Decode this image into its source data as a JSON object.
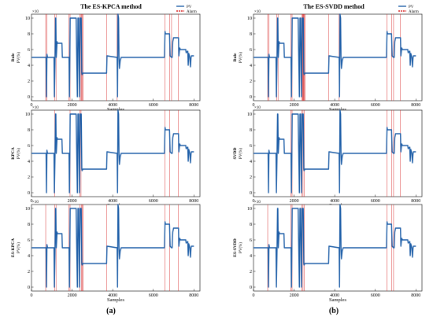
{
  "figure": {
    "left_title": "The ES-KPCA method",
    "right_title": "The ES-SVDD method",
    "left_caption": "(a)",
    "right_caption": "(b)"
  },
  "legend": {
    "pv_label": "PV",
    "alarm_label": "Alarm",
    "pv_color": "#1f5fa8",
    "alarm_color": "#d62020"
  },
  "axes": {
    "xlabel": "Samples",
    "y_unit": "PV(%)",
    "exponent": "×10",
    "xticks": [
      0,
      2000,
      4000,
      6000,
      8000
    ],
    "yticks": [
      0,
      2,
      4,
      6,
      8,
      10
    ],
    "xlim": [
      0,
      8300
    ],
    "ylim": [
      -0.5,
      10.5
    ]
  },
  "chart_data": [
    {
      "type": "line",
      "panel": "a1",
      "title": "The ES-KPCA method",
      "ylabel": "Rule",
      "xlabel": "Samples",
      "series": [
        {
          "name": "PV",
          "x": [
            0,
            720,
            740,
            760,
            790,
            805,
            1110,
            1130,
            1160,
            1185,
            1200,
            1220,
            1260,
            1280,
            1500,
            1520,
            1850,
            1870,
            1890,
            1905,
            1920,
            2200,
            2230,
            2260,
            2290,
            2320,
            2340,
            2360,
            2400,
            2450,
            2480,
            2495,
            2530,
            2580,
            3700,
            3720,
            4220,
            4240,
            4260,
            4290,
            4310,
            4330,
            4370,
            4420,
            4500,
            6550,
            6580,
            6600,
            6800,
            6830,
            6900,
            6930,
            6960,
            7000,
            7240,
            7260,
            7300,
            7340,
            7600,
            7620,
            7700,
            7720,
            7750,
            7800,
            7830,
            7860,
            7880,
            8000
          ],
          "y": [
            5,
            5,
            0,
            5.4,
            5,
            5,
            5,
            0,
            5,
            10,
            10,
            5,
            7,
            6.8,
            6.8,
            5,
            5,
            0,
            5,
            10,
            10,
            10,
            5,
            0,
            10,
            10,
            5,
            0,
            10,
            10,
            3,
            2.8,
            3,
            3,
            3,
            5.2,
            5,
            0,
            10.5,
            10,
            5.2,
            3.6,
            4.6,
            5,
            5,
            5,
            8.3,
            8,
            8,
            5.2,
            5,
            5,
            7,
            7.5,
            7.5,
            5.2,
            6.2,
            6,
            6,
            5.6,
            5.8,
            4,
            5.5,
            5,
            3.8,
            5,
            5.2,
            5.2
          ]
        }
      ],
      "alarms": [
        700,
        760,
        1150,
        1210,
        1850,
        1900,
        2380,
        2440,
        2460,
        2500,
        2540,
        3700,
        4220,
        6570,
        6800,
        6900,
        7240
      ]
    },
    {
      "type": "line",
      "panel": "b1",
      "title": "The ES-SVDD method",
      "ylabel": "Rule",
      "xlabel": "Samples",
      "series": [
        {
          "name": "PV",
          "x": [
            0,
            720,
            740,
            760,
            790,
            805,
            1110,
            1130,
            1160,
            1185,
            1200,
            1220,
            1260,
            1280,
            1500,
            1520,
            1850,
            1870,
            1890,
            1905,
            1920,
            2200,
            2230,
            2260,
            2290,
            2320,
            2340,
            2360,
            2400,
            2450,
            2480,
            2495,
            2530,
            2580,
            3700,
            3720,
            4220,
            4240,
            4260,
            4290,
            4310,
            4330,
            4370,
            4420,
            4500,
            6550,
            6580,
            6600,
            6800,
            6830,
            6900,
            6930,
            6960,
            7000,
            7240,
            7260,
            7300,
            7340,
            7600,
            7620,
            7700,
            7720,
            7750,
            7800,
            7830,
            7860,
            7880,
            8000
          ],
          "y": [
            5,
            5,
            0,
            5.4,
            5,
            5,
            5,
            0,
            5,
            10,
            10,
            5,
            7,
            6.8,
            6.8,
            5,
            5,
            0,
            5,
            10,
            10,
            10,
            5,
            0,
            10,
            10,
            5,
            0,
            10,
            10,
            3,
            2.8,
            3,
            3,
            3,
            5.2,
            5,
            0,
            10.5,
            10,
            5.2,
            3.6,
            4.6,
            5,
            5,
            5,
            8.3,
            8,
            8,
            5.2,
            5,
            5,
            7,
            7.5,
            7.5,
            5.2,
            6.2,
            6,
            6,
            5.6,
            5.8,
            4,
            5.5,
            5,
            3.8,
            5,
            5.2,
            5.2
          ]
        }
      ],
      "alarms": [
        700,
        760,
        1150,
        1210,
        1850,
        1900,
        2380,
        2420,
        2440,
        2460,
        2480,
        2500,
        2540,
        3700,
        4220,
        6570,
        6800,
        6900,
        7240
      ]
    },
    {
      "type": "line",
      "panel": "a2",
      "ylabel": "KPCA",
      "xlabel": "Samples",
      "series": [
        {
          "name": "PV",
          "x": [
            0,
            720,
            740,
            760,
            790,
            805,
            1110,
            1130,
            1160,
            1185,
            1200,
            1220,
            1260,
            1280,
            1500,
            1520,
            1850,
            1870,
            1890,
            1905,
            1920,
            2200,
            2230,
            2260,
            2290,
            2320,
            2340,
            2360,
            2400,
            2450,
            2480,
            2495,
            2530,
            2580,
            3700,
            3720,
            4220,
            4240,
            4260,
            4290,
            4310,
            4330,
            4370,
            4420,
            4500,
            6550,
            6580,
            6600,
            6800,
            6830,
            6900,
            6930,
            6960,
            7000,
            7240,
            7260,
            7300,
            7340,
            7600,
            7620,
            7700,
            7720,
            7750,
            7800,
            7830,
            7860,
            7880,
            8000
          ],
          "y": [
            5,
            5,
            0,
            5.4,
            5,
            5,
            5,
            0,
            5,
            10,
            10,
            5,
            7,
            6.8,
            6.8,
            5,
            5,
            0,
            5,
            10,
            10,
            10,
            5,
            0,
            10,
            10,
            5,
            0,
            10,
            10,
            3,
            2.8,
            3,
            3,
            3,
            5.2,
            5,
            0,
            10.5,
            10,
            5.2,
            3.6,
            4.6,
            5,
            5,
            5,
            8.3,
            8,
            8,
            5.2,
            5,
            5,
            7,
            7.5,
            7.5,
            5.2,
            6.2,
            6,
            6,
            5.6,
            5.8,
            4,
            5.5,
            5,
            3.8,
            5,
            5.2,
            5.2
          ]
        }
      ],
      "alarms": [
        1150,
        1900,
        2380,
        2440,
        6570,
        6800,
        7240
      ]
    },
    {
      "type": "line",
      "panel": "b2",
      "ylabel": "SVDD",
      "xlabel": "Samples",
      "series": [
        {
          "name": "PV",
          "x": [
            0,
            720,
            740,
            760,
            790,
            805,
            1110,
            1130,
            1160,
            1185,
            1200,
            1220,
            1260,
            1280,
            1500,
            1520,
            1850,
            1870,
            1890,
            1905,
            1920,
            2200,
            2230,
            2260,
            2290,
            2320,
            2340,
            2360,
            2400,
            2450,
            2480,
            2495,
            2530,
            2580,
            3700,
            3720,
            4220,
            4240,
            4260,
            4290,
            4310,
            4330,
            4370,
            4420,
            4500,
            6550,
            6580,
            6600,
            6800,
            6830,
            6900,
            6930,
            6960,
            7000,
            7240,
            7260,
            7300,
            7340,
            7600,
            7620,
            7700,
            7720,
            7750,
            7800,
            7830,
            7860,
            7880,
            8000
          ],
          "y": [
            5,
            5,
            0,
            5.4,
            5,
            5,
            5,
            0,
            5,
            10,
            10,
            5,
            7,
            6.8,
            6.8,
            5,
            5,
            0,
            5,
            10,
            10,
            10,
            5,
            0,
            10,
            10,
            5,
            0,
            10,
            10,
            3,
            2.8,
            3,
            3,
            3,
            5.2,
            5,
            0,
            10.5,
            10,
            5.2,
            3.6,
            4.6,
            5,
            5,
            5,
            8.3,
            8,
            8,
            5.2,
            5,
            5,
            7,
            7.5,
            7.5,
            5.2,
            6.2,
            6,
            6,
            5.6,
            5.8,
            4,
            5.5,
            5,
            3.8,
            5,
            5.2,
            5.2
          ]
        }
      ],
      "alarms": [
        1850,
        1900,
        2380,
        2440,
        2500,
        6570,
        6800,
        6900,
        7240
      ]
    },
    {
      "type": "line",
      "panel": "a3",
      "ylabel": "ES-KPCA",
      "xlabel": "Samples",
      "series": [
        {
          "name": "PV",
          "x": [
            0,
            720,
            740,
            760,
            790,
            805,
            1110,
            1130,
            1160,
            1185,
            1200,
            1220,
            1260,
            1280,
            1500,
            1520,
            1850,
            1870,
            1890,
            1905,
            1920,
            2200,
            2230,
            2260,
            2290,
            2320,
            2340,
            2360,
            2400,
            2450,
            2480,
            2495,
            2530,
            2580,
            3700,
            3720,
            4220,
            4240,
            4260,
            4290,
            4310,
            4330,
            4370,
            4420,
            4500,
            6550,
            6580,
            6600,
            6800,
            6830,
            6900,
            6930,
            6960,
            7000,
            7240,
            7260,
            7300,
            7340,
            7600,
            7620,
            7700,
            7720,
            7750,
            7800,
            7830,
            7860,
            7880,
            8000
          ],
          "y": [
            5,
            5,
            0,
            5.4,
            5,
            5,
            5,
            0,
            5,
            10,
            10,
            5,
            7,
            6.8,
            6.8,
            5,
            5,
            0,
            5,
            10,
            10,
            10,
            5,
            0,
            10,
            10,
            5,
            0,
            10,
            10,
            3,
            2.8,
            3,
            3,
            3,
            5.2,
            5,
            0,
            10.5,
            10,
            5.2,
            3.6,
            4.6,
            5,
            5,
            5,
            8.3,
            8,
            8,
            5.2,
            5,
            5,
            7,
            7.5,
            7.5,
            5.2,
            6.2,
            6,
            6,
            5.6,
            5.8,
            4,
            5.5,
            5,
            3.8,
            5,
            5.2,
            5.2
          ]
        }
      ],
      "alarms": [
        700,
        1150,
        1210,
        1850,
        1900,
        2380,
        2460,
        2500,
        2540,
        3700,
        6570,
        6800,
        7240
      ]
    },
    {
      "type": "line",
      "panel": "b3",
      "ylabel": "ES-SVDD",
      "xlabel": "Samples",
      "series": [
        {
          "name": "PV",
          "x": [
            0,
            720,
            740,
            760,
            790,
            805,
            1110,
            1130,
            1160,
            1185,
            1200,
            1220,
            1260,
            1280,
            1500,
            1520,
            1850,
            1870,
            1890,
            1905,
            1920,
            2200,
            2230,
            2260,
            2290,
            2320,
            2340,
            2360,
            2400,
            2450,
            2480,
            2495,
            2530,
            2580,
            3700,
            3720,
            4220,
            4240,
            4260,
            4290,
            4310,
            4330,
            4370,
            4420,
            4500,
            6550,
            6580,
            6600,
            6800,
            6830,
            6900,
            6930,
            6960,
            7000,
            7240,
            7260,
            7300,
            7340,
            7600,
            7620,
            7700,
            7720,
            7750,
            7800,
            7830,
            7860,
            7880,
            8000
          ],
          "y": [
            5,
            5,
            0,
            5.4,
            5,
            5,
            5,
            0,
            5,
            10,
            10,
            5,
            7,
            6.8,
            6.8,
            5,
            5,
            0,
            5,
            10,
            10,
            10,
            5,
            0,
            10,
            10,
            5,
            0,
            10,
            10,
            3,
            2.8,
            3,
            3,
            3,
            5.2,
            5,
            0,
            10.5,
            10,
            5.2,
            3.6,
            4.6,
            5,
            5,
            5,
            8.3,
            8,
            8,
            5.2,
            5,
            5,
            7,
            7.5,
            7.5,
            5.2,
            6.2,
            6,
            6,
            5.6,
            5.8,
            4,
            5.5,
            5,
            3.8,
            5,
            5.2,
            5.2
          ]
        }
      ],
      "alarms": [
        700,
        1850,
        1900,
        2380,
        2440,
        2500,
        6570,
        6800,
        6900
      ]
    }
  ]
}
